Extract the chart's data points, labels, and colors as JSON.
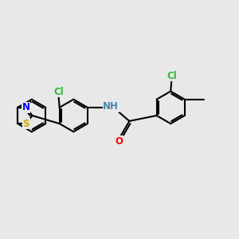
{
  "background_color": "#e8e8e8",
  "bond_color": "#000000",
  "atom_colors": {
    "S": "#ccaa00",
    "N_btz": "#0000ff",
    "N_amide": "#4488aa",
    "Cl1": "#33bb33",
    "Cl2": "#33bb33",
    "O": "#ff0000",
    "C": "#000000"
  },
  "figsize": [
    3.0,
    3.0
  ],
  "dpi": 100,
  "xlim": [
    0,
    12
  ],
  "ylim": [
    0,
    10
  ]
}
